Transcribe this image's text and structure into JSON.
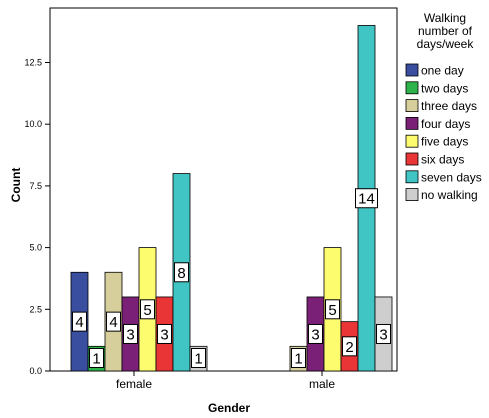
{
  "chart_data": {
    "type": "bar",
    "xlabel": "Gender",
    "ylabel": "Count",
    "categories": [
      "female",
      "male"
    ],
    "ylim": [
      0,
      14.3
    ],
    "yticks": [
      "0.0",
      "2.5",
      "5.0",
      "7.5",
      "10.0",
      "12.5"
    ],
    "ytick_values": [
      0,
      2.5,
      5,
      7.5,
      10,
      12.5
    ],
    "legend_title": [
      "Walking",
      "number of",
      "days/week"
    ],
    "legend_position": "right",
    "series": [
      {
        "name": "one day",
        "color": "#3a4ea0",
        "values": [
          4,
          0
        ]
      },
      {
        "name": "two days",
        "color": "#2db34a",
        "values": [
          1,
          0
        ]
      },
      {
        "name": "three days",
        "color": "#d6cf9c",
        "values": [
          4,
          1
        ]
      },
      {
        "name": "four days",
        "color": "#7a2177",
        "values": [
          3,
          3
        ]
      },
      {
        "name": "five days",
        "color": "#fdfb6e",
        "values": [
          5,
          5
        ]
      },
      {
        "name": "six days",
        "color": "#e93535",
        "values": [
          3,
          2
        ]
      },
      {
        "name": "seven days",
        "color": "#41c4c4",
        "values": [
          8,
          14
        ]
      },
      {
        "name": "no walking",
        "color": "#cecece",
        "values": [
          1,
          3
        ]
      }
    ],
    "data_labels": [
      [
        "4",
        "1",
        "4",
        "3",
        "5",
        "3",
        "8",
        "1"
      ],
      [
        "",
        "",
        "1",
        "3",
        "5",
        "2",
        "14",
        "3"
      ]
    ],
    "grid": false
  }
}
